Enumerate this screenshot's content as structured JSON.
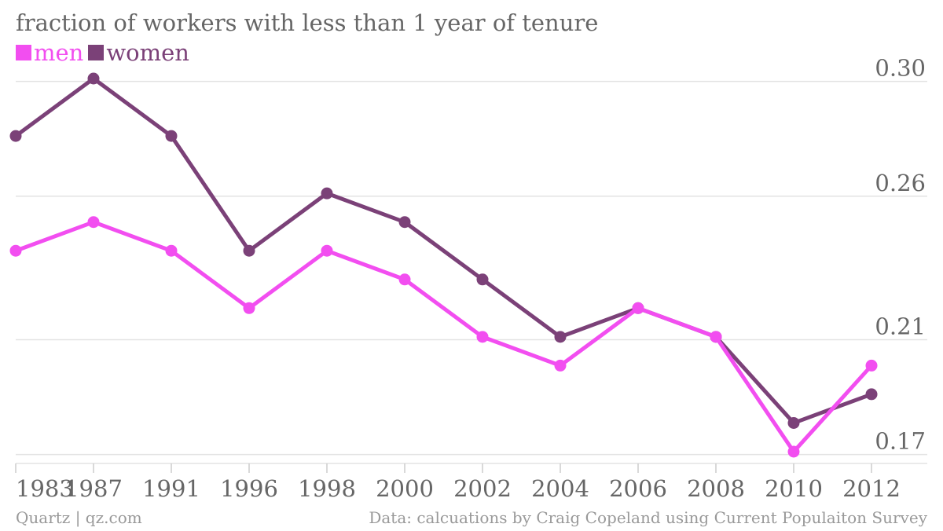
{
  "chart_data": {
    "type": "line",
    "title": "fraction of workers with less than 1 year of tenure",
    "categories": [
      "1983",
      "1987",
      "1991",
      "1996",
      "1998",
      "2000",
      "2002",
      "2004",
      "2006",
      "2008",
      "2010",
      "2012"
    ],
    "series": [
      {
        "name": "men",
        "color": "#f24ef0",
        "values": [
          0.241,
          0.251,
          0.241,
          0.221,
          0.241,
          0.231,
          0.211,
          0.201,
          0.221,
          0.211,
          0.171,
          0.201
        ]
      },
      {
        "name": "women",
        "color": "#7b4178",
        "values": [
          0.281,
          0.301,
          0.281,
          0.241,
          0.261,
          0.251,
          0.231,
          0.211,
          0.221,
          0.211,
          0.181,
          0.191
        ]
      }
    ],
    "y_ticks": [
      "0.30",
      "0.26",
      "0.21",
      "0.17"
    ],
    "ylim": [
      0.171,
      0.301
    ],
    "xlabel": "",
    "ylabel": "",
    "grid": true,
    "legend_position": "top-left"
  },
  "footer": {
    "source_left": "Quartz | qz.com",
    "source_right": "Data: calcuations by Craig Copeland using Current Populaiton Survey"
  }
}
